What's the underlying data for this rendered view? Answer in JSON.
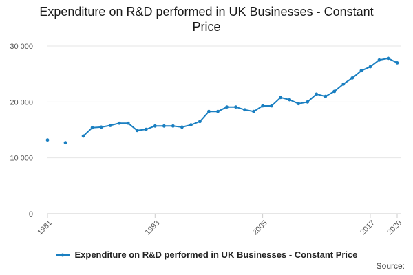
{
  "chart_data": {
    "type": "line",
    "title_lines": [
      "Expenditure on R&D performed in UK Businesses - Constant",
      "Price"
    ],
    "x_tick_labels": [
      "1981",
      "1993",
      "2005",
      "2017",
      "2020"
    ],
    "y_tick_labels": [
      "0",
      "10 000",
      "20 000",
      "30 000"
    ],
    "y_ticks": [
      0,
      10000,
      20000,
      30000
    ],
    "ylim": [
      0,
      30000
    ],
    "grid": true,
    "legend_position": "bottom",
    "series": [
      {
        "name": "Expenditure on R&D performed in UK Businesses - Constant Price",
        "color": "#1a7fc1",
        "points": [
          {
            "x": 1981,
            "y": 13200
          },
          {
            "x": 1983,
            "y": 12700
          },
          {
            "x": 1985,
            "y": 13900
          },
          {
            "x": 1986,
            "y": 15400
          },
          {
            "x": 1987,
            "y": 15500
          },
          {
            "x": 1988,
            "y": 15800
          },
          {
            "x": 1989,
            "y": 16200
          },
          {
            "x": 1990,
            "y": 16200
          },
          {
            "x": 1991,
            "y": 14900
          },
          {
            "x": 1992,
            "y": 15100
          },
          {
            "x": 1993,
            "y": 15700
          },
          {
            "x": 1994,
            "y": 15700
          },
          {
            "x": 1995,
            "y": 15700
          },
          {
            "x": 1996,
            "y": 15500
          },
          {
            "x": 1997,
            "y": 15900
          },
          {
            "x": 1998,
            "y": 16500
          },
          {
            "x": 1999,
            "y": 18300
          },
          {
            "x": 2000,
            "y": 18300
          },
          {
            "x": 2001,
            "y": 19100
          },
          {
            "x": 2002,
            "y": 19100
          },
          {
            "x": 2003,
            "y": 18600
          },
          {
            "x": 2004,
            "y": 18300
          },
          {
            "x": 2005,
            "y": 19300
          },
          {
            "x": 2006,
            "y": 19300
          },
          {
            "x": 2007,
            "y": 20800
          },
          {
            "x": 2008,
            "y": 20400
          },
          {
            "x": 2009,
            "y": 19700
          },
          {
            "x": 2010,
            "y": 20000
          },
          {
            "x": 2011,
            "y": 21400
          },
          {
            "x": 2012,
            "y": 21000
          },
          {
            "x": 2013,
            "y": 21900
          },
          {
            "x": 2014,
            "y": 23200
          },
          {
            "x": 2015,
            "y": 24300
          },
          {
            "x": 2016,
            "y": 25600
          },
          {
            "x": 2017,
            "y": 26300
          },
          {
            "x": 2018,
            "y": 27500
          },
          {
            "x": 2019,
            "y": 27800
          },
          {
            "x": 2020,
            "y": 27000
          }
        ]
      }
    ]
  },
  "source_label": "Source:"
}
